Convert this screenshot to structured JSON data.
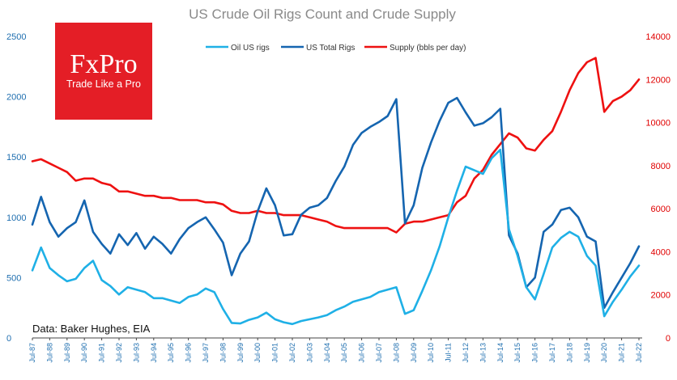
{
  "chart_data": {
    "type": "line",
    "title": "US Crude Oil Rigs Count and Crude Supply",
    "source_note": "Data: Baker Hughes, EIA",
    "logo": {
      "brand": "FxPro",
      "tagline": "Trade Like a Pro",
      "color": "#e41e26"
    },
    "y_left": {
      "ticks": [
        "0",
        "500",
        "1000",
        "1500",
        "2000",
        "2500"
      ],
      "range": [
        0,
        2500
      ]
    },
    "y_right": {
      "ticks": [
        "0",
        "2000",
        "4000",
        "6000",
        "8000",
        "10000",
        "12000",
        "14000"
      ],
      "range": [
        0,
        14000
      ]
    },
    "x_ticks": [
      "Jul-87",
      "Jul-88",
      "Jul-89",
      "Jul-90",
      "Jul-91",
      "Jul-92",
      "Jul-93",
      "Jul-94",
      "Jul-95",
      "Jul-96",
      "Jul-97",
      "Jul-98",
      "Jul-99",
      "Jul-00",
      "Jul-01",
      "Jul-02",
      "Jul-03",
      "Jul-04",
      "Jul-05",
      "Jul-06",
      "Jul-07",
      "Jul-08",
      "Jul-09",
      "Jul-10",
      "Jul-11",
      "Jul-12",
      "Jul-13",
      "Jul-14",
      "Jul-15",
      "Jul-16",
      "Jul-17",
      "Jul-18",
      "Jul-19",
      "Jul-20",
      "Jul-21",
      "Jul-22"
    ],
    "legend_position": "top-center",
    "series": [
      {
        "name": "Oil US rigs",
        "axis": "left",
        "color": "#1fb0e6",
        "x": [
          1987.5,
          1988,
          1988.5,
          1989,
          1989.5,
          1990,
          1990.5,
          1991,
          1991.5,
          1992,
          1992.5,
          1993,
          1993.5,
          1994,
          1994.5,
          1995,
          1995.5,
          1996,
          1996.5,
          1997,
          1997.5,
          1998,
          1998.5,
          1999,
          1999.5,
          2000,
          2000.5,
          2001,
          2001.5,
          2002,
          2002.5,
          2003,
          2003.5,
          2004,
          2004.5,
          2005,
          2005.5,
          2006,
          2006.5,
          2007,
          2007.5,
          2008,
          2008.5,
          2009,
          2009.5,
          2010,
          2010.5,
          2011,
          2011.5,
          2012,
          2012.5,
          2013,
          2013.5,
          2014,
          2014.5,
          2015,
          2015.5,
          2016,
          2016.5,
          2017,
          2017.5,
          2018,
          2018.5,
          2019,
          2019.5,
          2020,
          2020.5,
          2021,
          2021.5,
          2022,
          2022.5
        ],
        "values": [
          560,
          750,
          580,
          520,
          470,
          490,
          580,
          640,
          480,
          430,
          360,
          420,
          400,
          380,
          330,
          330,
          310,
          290,
          340,
          360,
          410,
          380,
          240,
          125,
          120,
          150,
          170,
          210,
          155,
          130,
          115,
          140,
          155,
          170,
          190,
          230,
          260,
          300,
          320,
          340,
          380,
          400,
          420,
          200,
          230,
          390,
          560,
          760,
          1000,
          1220,
          1420,
          1390,
          1360,
          1490,
          1560,
          900,
          680,
          420,
          320,
          530,
          750,
          830,
          880,
          840,
          680,
          600,
          180,
          300,
          400,
          510,
          600
        ]
      },
      {
        "name": "US Total Rigs",
        "axis": "left",
        "color": "#1565b0",
        "x": [
          1987.5,
          1988,
          1988.5,
          1989,
          1989.5,
          1990,
          1990.5,
          1991,
          1991.5,
          1992,
          1992.5,
          1993,
          1993.5,
          1994,
          1994.5,
          1995,
          1995.5,
          1996,
          1996.5,
          1997,
          1997.5,
          1998,
          1998.5,
          1999,
          1999.5,
          2000,
          2000.5,
          2001,
          2001.5,
          2002,
          2002.5,
          2003,
          2003.5,
          2004,
          2004.5,
          2005,
          2005.5,
          2006,
          2006.5,
          2007,
          2007.5,
          2008,
          2008.5,
          2009,
          2009.5,
          2010,
          2010.5,
          2011,
          2011.5,
          2012,
          2012.5,
          2013,
          2013.5,
          2014,
          2014.5,
          2015,
          2015.5,
          2016,
          2016.5,
          2017,
          2017.5,
          2018,
          2018.5,
          2019,
          2019.5,
          2020,
          2020.5,
          2021,
          2021.5,
          2022,
          2022.5
        ],
        "values": [
          940,
          1170,
          960,
          840,
          910,
          960,
          1140,
          880,
          780,
          700,
          860,
          770,
          870,
          740,
          840,
          780,
          700,
          820,
          910,
          960,
          1000,
          900,
          790,
          520,
          700,
          800,
          1050,
          1240,
          1100,
          850,
          860,
          1020,
          1080,
          1100,
          1160,
          1300,
          1420,
          1600,
          1700,
          1750,
          1790,
          1840,
          1980,
          950,
          1100,
          1410,
          1620,
          1800,
          1950,
          1990,
          1870,
          1760,
          1780,
          1830,
          1900,
          850,
          700,
          420,
          500,
          880,
          940,
          1060,
          1080,
          1000,
          840,
          800,
          250,
          380,
          500,
          620,
          760
        ]
      },
      {
        "name": "Supply (bbls per day)",
        "axis": "right",
        "color": "#ee1111",
        "x": [
          1987.5,
          1988,
          1988.5,
          1989,
          1989.5,
          1990,
          1990.5,
          1991,
          1991.5,
          1992,
          1992.5,
          1993,
          1993.5,
          1994,
          1994.5,
          1995,
          1995.5,
          1996,
          1996.5,
          1997,
          1997.5,
          1998,
          1998.5,
          1999,
          1999.5,
          2000,
          2000.5,
          2001,
          2001.5,
          2002,
          2002.5,
          2003,
          2003.5,
          2004,
          2004.5,
          2005,
          2005.5,
          2006,
          2006.5,
          2007,
          2007.5,
          2008,
          2008.5,
          2009,
          2009.5,
          2010,
          2010.5,
          2011,
          2011.5,
          2012,
          2012.5,
          2013,
          2013.5,
          2014,
          2014.5,
          2015,
          2015.5,
          2016,
          2016.5,
          2017,
          2017.5,
          2018,
          2018.5,
          2019,
          2019.5,
          2020,
          2020.5,
          2021,
          2021.5,
          2022,
          2022.5
        ],
        "values": [
          8200,
          8300,
          8100,
          7900,
          7700,
          7300,
          7400,
          7400,
          7200,
          7100,
          6800,
          6800,
          6700,
          6600,
          6600,
          6500,
          6500,
          6400,
          6400,
          6400,
          6300,
          6300,
          6200,
          5900,
          5800,
          5800,
          5900,
          5800,
          5800,
          5700,
          5700,
          5700,
          5600,
          5500,
          5400,
          5200,
          5100,
          5100,
          5100,
          5100,
          5100,
          5100,
          4900,
          5300,
          5400,
          5400,
          5500,
          5600,
          5700,
          6300,
          6600,
          7400,
          7800,
          8500,
          9000,
          9500,
          9300,
          8800,
          8700,
          9200,
          9600,
          10500,
          11500,
          12300,
          12800,
          13000,
          10500,
          11000,
          11200,
          11500,
          12000
        ]
      }
    ]
  }
}
